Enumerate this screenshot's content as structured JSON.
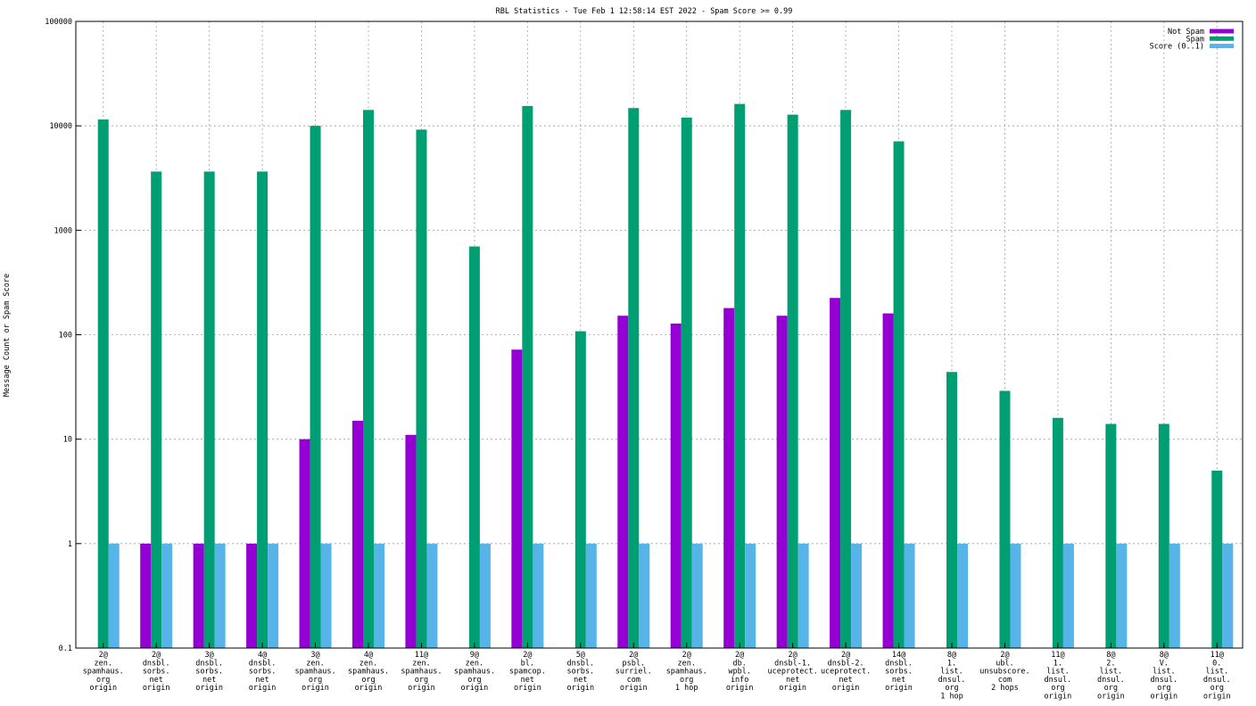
{
  "chart_data": {
    "type": "bar",
    "title": "RBL Statistics - Tue Feb  1 12:58:14 EST 2022 - Spam Score >= 0.99",
    "ylabel": "Message Count or Spam Score",
    "xlabel": "",
    "yscale": "log",
    "ylim": [
      0.1,
      100000
    ],
    "yticks": [
      "0.1",
      "1",
      "10",
      "100",
      "1000",
      "10000",
      "100000"
    ],
    "grid": true,
    "legend_position": "top-right",
    "categories": [
      [
        "2@",
        "zen.",
        "spamhaus.",
        "org",
        "origin"
      ],
      [
        "2@",
        "dnsbl.",
        "sorbs.",
        "net",
        "origin"
      ],
      [
        "3@",
        "dnsbl.",
        "sorbs.",
        "net",
        "origin"
      ],
      [
        "4@",
        "dnsbl.",
        "sorbs.",
        "net",
        "origin"
      ],
      [
        "3@",
        "zen.",
        "spamhaus.",
        "org",
        "origin"
      ],
      [
        "4@",
        "zen.",
        "spamhaus.",
        "org",
        "origin"
      ],
      [
        "11@",
        "zen.",
        "spamhaus.",
        "org",
        "origin"
      ],
      [
        "9@",
        "zen.",
        "spamhaus.",
        "org",
        "origin"
      ],
      [
        "2@",
        "bl.",
        "spamcop.",
        "net",
        "origin"
      ],
      [
        "5@",
        "dnsbl.",
        "sorbs.",
        "net",
        "origin"
      ],
      [
        "2@",
        "psbl.",
        "surriel.",
        "com",
        "origin"
      ],
      [
        "2@",
        "zen.",
        "spamhaus.",
        "org",
        "1 hop"
      ],
      [
        "2@",
        "db.",
        "wpbl.",
        "info",
        "origin"
      ],
      [
        "2@",
        "dnsbl-1.",
        "uceprotect.",
        "net",
        "origin"
      ],
      [
        "2@",
        "dnsbl-2.",
        "uceprotect.",
        "net",
        "origin"
      ],
      [
        "14@",
        "dnsbl.",
        "sorbs.",
        "net",
        "origin"
      ],
      [
        "8@",
        "1.",
        "list.",
        "dnsul.",
        "org",
        "1 hop"
      ],
      [
        "2@",
        "ubl.",
        "unsubscore.",
        "com",
        "2 hops"
      ],
      [
        "11@",
        "1.",
        "list.",
        "dnsul.",
        "org",
        "origin"
      ],
      [
        "8@",
        "2.",
        "list.",
        "dnsul.",
        "org",
        "origin"
      ],
      [
        "8@",
        "V.",
        "list.",
        "dnsul.",
        "org",
        "origin"
      ],
      [
        "11@",
        "0.",
        "list.",
        "dnsul.",
        "org",
        "origin"
      ]
    ],
    "series": [
      {
        "name": "Not Spam",
        "color": "#9400d3",
        "values": [
          null,
          1,
          1,
          1,
          10,
          15,
          11,
          null,
          72,
          null,
          152,
          128,
          180,
          152,
          225,
          160,
          null,
          null,
          null,
          null,
          null,
          null
        ]
      },
      {
        "name": "Spam",
        "color": "#009e73",
        "values": [
          11500,
          3650,
          3650,
          3650,
          10000,
          14200,
          9200,
          700,
          15500,
          108,
          14800,
          12000,
          16200,
          12800,
          14200,
          7100,
          44,
          29,
          16,
          14,
          14,
          5
        ]
      },
      {
        "name": "Score (0..1)",
        "color": "#56b4e9",
        "values": [
          1,
          1,
          1,
          1,
          1,
          1,
          1,
          1,
          1,
          1,
          1,
          1,
          1,
          1,
          1,
          1,
          1,
          1,
          1,
          1,
          1,
          1
        ]
      }
    ]
  }
}
